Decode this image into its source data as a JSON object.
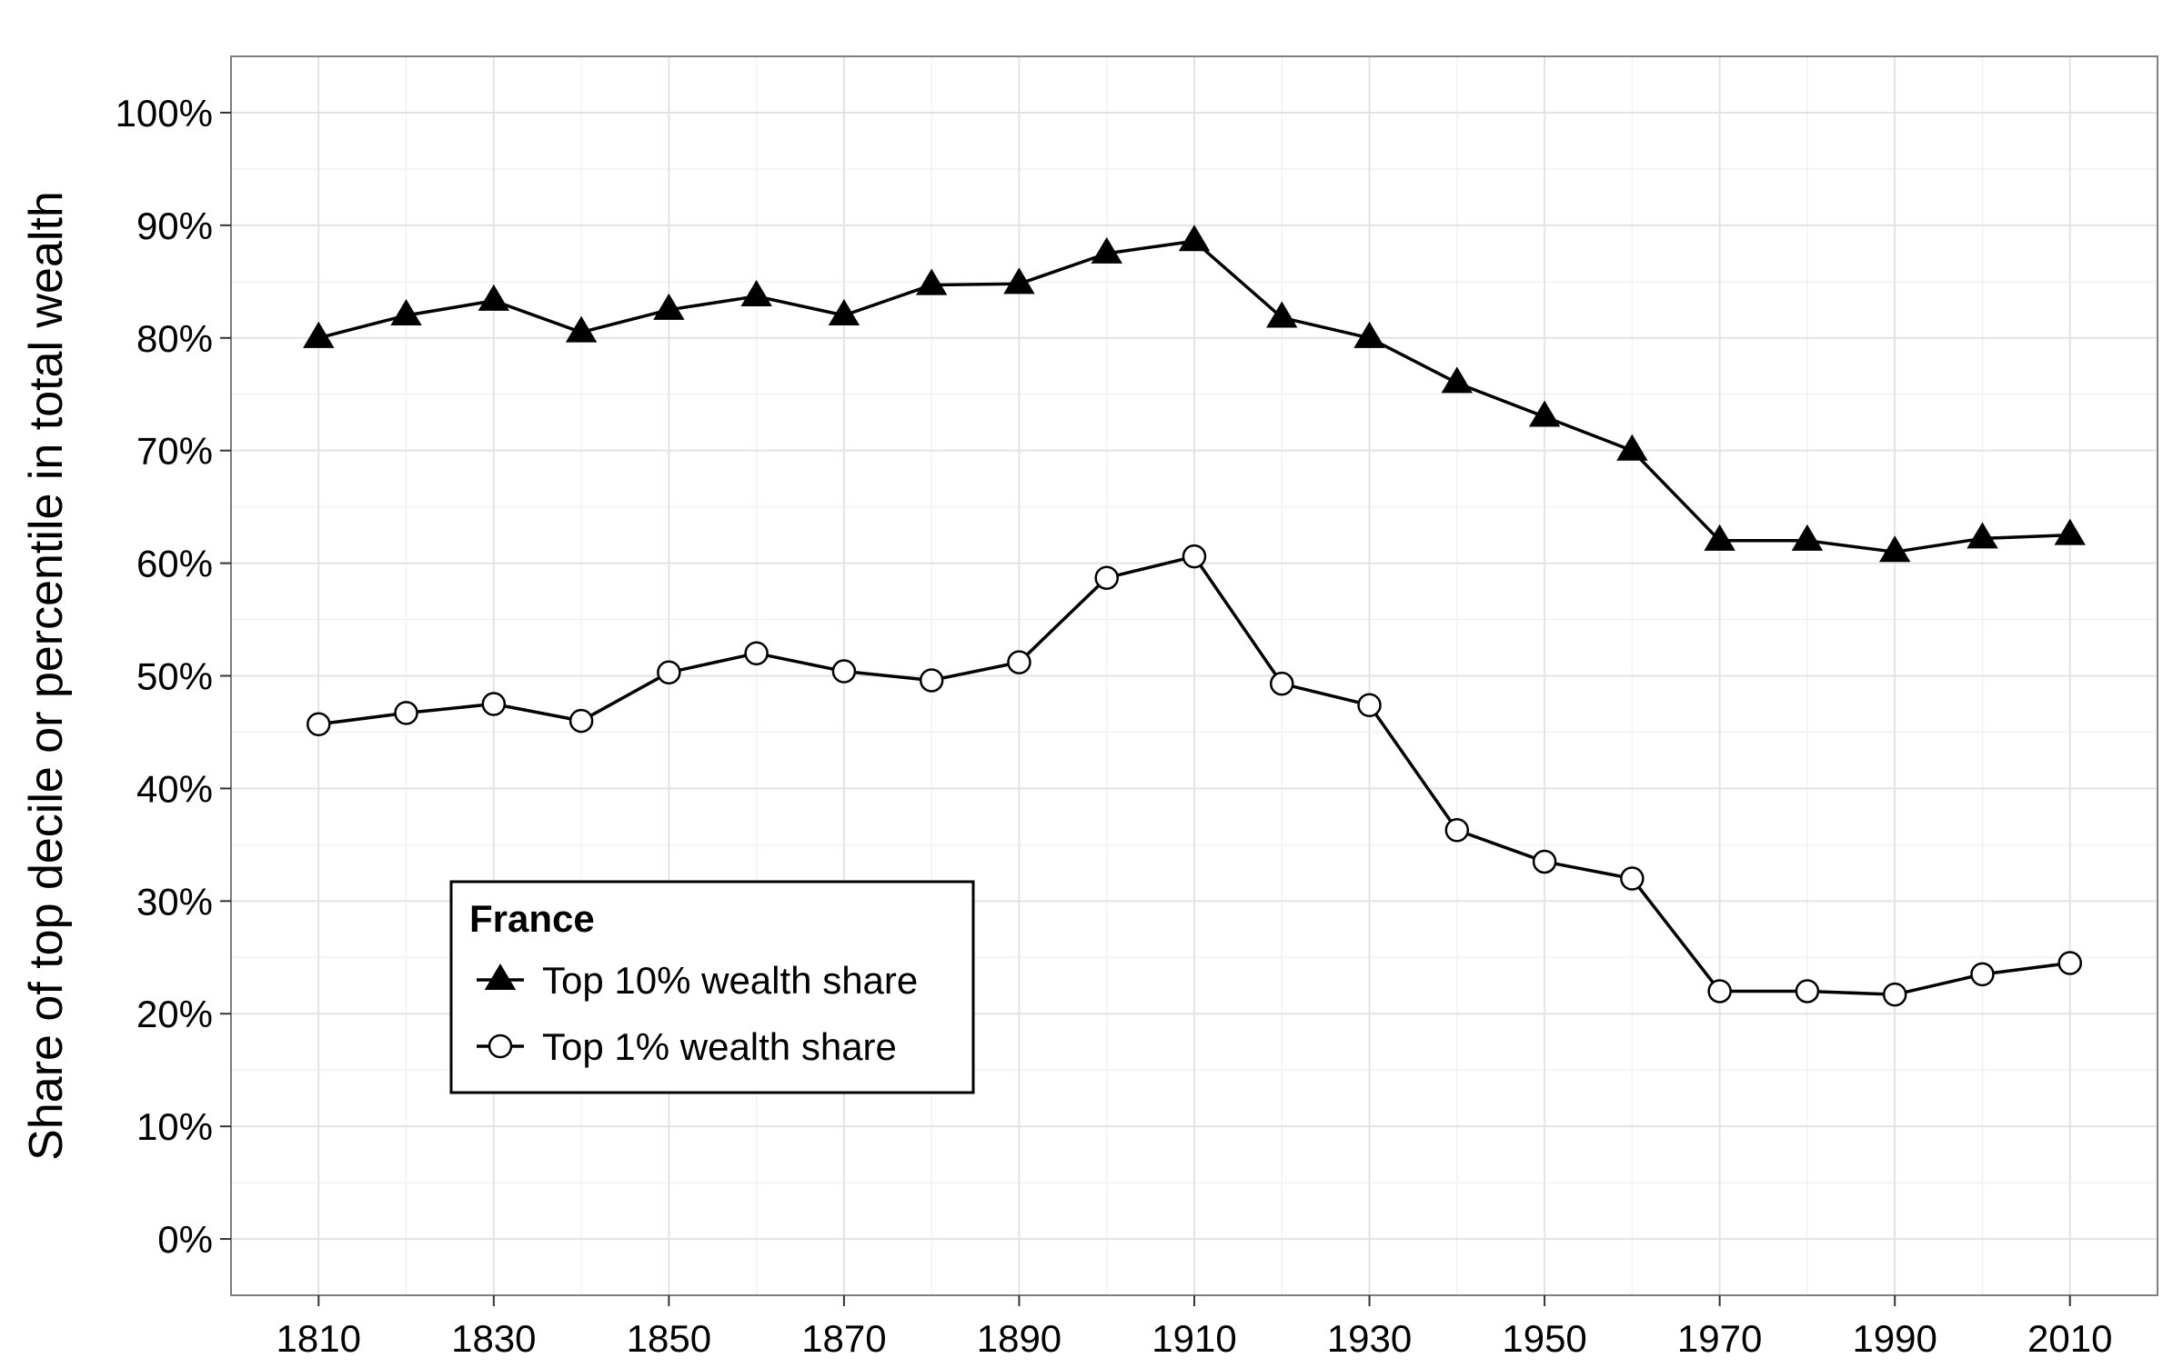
{
  "chart_data": {
    "type": "line",
    "title": "",
    "xlabel": "",
    "ylabel": "Share of top decile or percentile in total wealth",
    "x": [
      1810,
      1820,
      1830,
      1840,
      1850,
      1860,
      1870,
      1880,
      1890,
      1900,
      1910,
      1920,
      1930,
      1940,
      1950,
      1960,
      1970,
      1980,
      1990,
      2000,
      2010
    ],
    "xticks": [
      1810,
      1830,
      1850,
      1870,
      1890,
      1910,
      1930,
      1950,
      1970,
      1990,
      2010
    ],
    "xlim": [
      1800,
      2020
    ],
    "yticks": [
      0,
      0.1,
      0.2,
      0.3,
      0.4,
      0.5,
      0.6,
      0.7,
      0.8,
      0.9,
      1.0
    ],
    "ytick_labels": [
      "0%",
      "10%",
      "20%",
      "30%",
      "40%",
      "50%",
      "60%",
      "70%",
      "80%",
      "90%",
      "100%"
    ],
    "ylim": [
      -0.05,
      1.05
    ],
    "grid": true,
    "legend": {
      "title": "France",
      "placement": "bottom-left",
      "framed": true
    },
    "series": [
      {
        "name": "Top 10% wealth share",
        "marker": "filled-triangle",
        "color": "#000000",
        "values": [
          0.8,
          0.82,
          0.833,
          0.805,
          0.825,
          0.837,
          0.82,
          0.847,
          0.848,
          0.875,
          0.886,
          0.818,
          0.8,
          0.76,
          0.73,
          0.7,
          0.62,
          0.62,
          0.61,
          0.622,
          0.625
        ]
      },
      {
        "name": "Top 1% wealth share",
        "marker": "open-circle",
        "color": "#000000",
        "values": [
          0.457,
          0.467,
          0.475,
          0.46,
          0.503,
          0.52,
          0.504,
          0.496,
          0.512,
          0.587,
          0.606,
          0.493,
          0.474,
          0.363,
          0.335,
          0.32,
          0.22,
          0.22,
          0.217,
          0.235,
          0.245
        ]
      }
    ]
  },
  "colors": {
    "background": "#ffffff",
    "panel_border": "#7f7f7f",
    "grid_major": "#e3e3e3",
    "grid_minor": "#f2f2f2",
    "ink": "#000000"
  }
}
